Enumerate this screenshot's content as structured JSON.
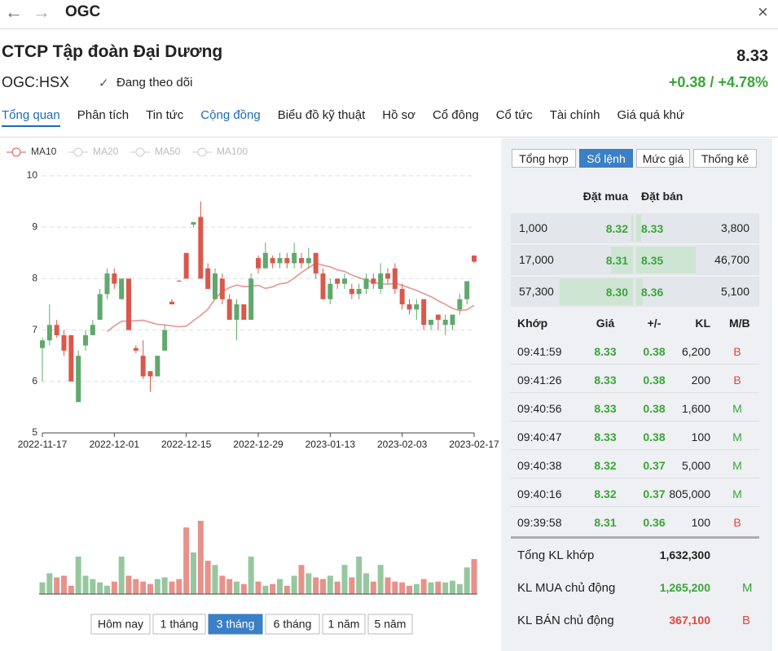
{
  "top_bar": {
    "symbol": "OGC"
  },
  "header": {
    "company": "CTCP Tập đoàn Đại Dương",
    "ticker": "OGC:HSX",
    "follow": "Đang theo dõi",
    "price": "8.33",
    "change": "+0.38 / +4.78%"
  },
  "tabs": [
    "Tổng quan",
    "Phân tích",
    "Tin tức",
    "Cộng đồng",
    "Biểu đồ kỹ thuật",
    "Hồ sơ",
    "Cổ đông",
    "Cổ tức",
    "Tài chính",
    "Giá quá khứ"
  ],
  "chart_data": {
    "type": "candlestick",
    "indicators": [
      "MA10",
      "MA20",
      "MA50",
      "MA100"
    ],
    "categories": [
      "2022-11-17",
      null,
      null,
      null,
      null,
      null,
      null,
      null,
      null,
      null,
      "2022-12-01",
      null,
      null,
      null,
      null,
      null,
      null,
      null,
      null,
      null,
      "2022-12-15",
      null,
      null,
      null,
      null,
      null,
      null,
      null,
      null,
      null,
      "2022-12-29",
      null,
      null,
      null,
      null,
      null,
      null,
      null,
      null,
      null,
      "2023-01-13",
      null,
      null,
      null,
      null,
      null,
      null,
      null,
      null,
      null,
      "2023-02-03",
      null,
      null,
      null,
      null,
      null,
      null,
      null,
      null,
      null,
      "2023-02-17"
    ],
    "open": [
      6.65,
      6.8,
      7.1,
      6.9,
      6.9,
      5.6,
      6.7,
      6.9,
      7.2,
      7.7,
      8.1,
      7.6,
      8.0,
      6.65,
      6.5,
      6.2,
      6.1,
      6.6,
      7.55,
      7.96,
      8.5,
      9.05,
      9.2,
      8.2,
      7.6,
      8.0,
      7.6,
      7.2,
      7.5,
      7.2,
      8.4,
      8.2,
      8.4,
      8.3,
      8.4,
      8.3,
      8.4,
      8.3,
      8.5,
      8.1,
      7.6,
      8.0,
      7.9,
      7.8,
      7.7,
      7.8,
      8.0,
      7.8,
      8.1,
      8.2,
      7.8,
      7.5,
      7.4,
      7.6,
      7.1,
      7.3,
      7.1,
      7.1,
      7.4,
      7.6,
      8.45
    ],
    "close": [
      6.8,
      7.1,
      6.9,
      6.6,
      6.0,
      6.5,
      6.9,
      7.1,
      7.7,
      8.1,
      7.9,
      8.0,
      7.0,
      6.6,
      6.1,
      6.1,
      6.5,
      7.0,
      7.5,
      7.95,
      8.0,
      9.1,
      8.0,
      7.8,
      8.1,
      7.6,
      7.2,
      7.5,
      7.2,
      8.0,
      8.2,
      8.5,
      8.3,
      8.4,
      8.3,
      8.5,
      8.3,
      8.4,
      8.1,
      7.6,
      7.9,
      7.9,
      8.0,
      7.7,
      7.8,
      8.0,
      7.9,
      8.1,
      8.0,
      7.8,
      7.5,
      7.4,
      7.5,
      7.1,
      7.2,
      7.2,
      7.2,
      7.3,
      7.6,
      7.95,
      8.33
    ],
    "high": [
      6.85,
      7.5,
      7.2,
      7.0,
      6.9,
      6.6,
      7.0,
      7.2,
      7.8,
      8.2,
      8.2,
      8.0,
      8.0,
      6.7,
      6.8,
      6.2,
      6.5,
      7.1,
      7.6,
      7.97,
      8.5,
      9.1,
      9.5,
      8.3,
      8.2,
      8.1,
      7.7,
      7.6,
      7.5,
      8.1,
      8.45,
      8.7,
      8.45,
      8.5,
      8.5,
      8.7,
      8.5,
      8.6,
      8.5,
      8.2,
      8.0,
      8.0,
      8.1,
      7.9,
      7.9,
      8.1,
      8.1,
      8.3,
      8.2,
      8.3,
      7.9,
      7.6,
      7.6,
      7.6,
      7.2,
      7.3,
      7.3,
      7.3,
      7.7,
      7.95,
      8.45
    ],
    "low": [
      6.0,
      6.7,
      6.85,
      6.5,
      6.0,
      5.6,
      6.6,
      6.9,
      7.2,
      7.6,
      7.8,
      7.6,
      7.0,
      6.55,
      6.05,
      5.8,
      6.1,
      6.6,
      7.5,
      7.95,
      8.0,
      9.0,
      8.0,
      7.8,
      7.6,
      7.5,
      7.2,
      6.8,
      7.2,
      7.2,
      8.1,
      8.2,
      8.2,
      8.2,
      8.2,
      8.2,
      8.2,
      8.2,
      8.0,
      7.6,
      7.5,
      7.8,
      7.8,
      7.6,
      7.6,
      7.7,
      7.8,
      7.7,
      7.9,
      7.7,
      7.4,
      7.3,
      7.2,
      7.0,
      7.0,
      7.0,
      6.9,
      7.0,
      7.3,
      7.5,
      8.3
    ],
    "volume": [
      14,
      25,
      20,
      22,
      10,
      45,
      22,
      18,
      14,
      10,
      15,
      45,
      22,
      18,
      15,
      12,
      18,
      20,
      15,
      18,
      80,
      50,
      88,
      40,
      35,
      22,
      18,
      15,
      12,
      45,
      15,
      10,
      12,
      18,
      10,
      22,
      35,
      25,
      20,
      18,
      22,
      15,
      35,
      20,
      45,
      25,
      15,
      35,
      20,
      15,
      14,
      10,
      12,
      18,
      14,
      15,
      14,
      16,
      12,
      32,
      42
    ],
    "up_color": "#5fa96c",
    "down_color": "#d9584c",
    "ma_color": "#e3a19b",
    "ylim": [
      5,
      10
    ],
    "yticks": [
      5,
      6,
      7,
      8,
      9,
      10
    ],
    "grid": true
  },
  "ranges": [
    "Hôm nay",
    "1 tháng",
    "3 tháng",
    "6 tháng",
    "1 năm",
    "5 năm"
  ],
  "order_book": {
    "tabs": [
      "Tổng hợp",
      "Sổ lệnh",
      "Mức giá",
      "Thống kê"
    ],
    "bid_header": "Đặt mua",
    "ask_header": "Đặt bán",
    "levels": [
      {
        "bid_qty": {
          "value": 1000,
          "label": "1,000"
        },
        "bid": "8.32",
        "ask": "8.33",
        "ask_qty": {
          "value": 3800,
          "label": "3,800"
        }
      },
      {
        "bid_qty": {
          "value": 17000,
          "label": "17,000"
        },
        "bid": "8.31",
        "ask": "8.35",
        "ask_qty": {
          "value": 46700,
          "label": "46,700"
        }
      },
      {
        "bid_qty": {
          "value": 57300,
          "label": "57,300"
        },
        "bid": "8.30",
        "ask": "8.36",
        "ask_qty": {
          "value": 5100,
          "label": "5,100"
        }
      }
    ],
    "trade_header": [
      "Khớp",
      "Giá",
      "+/-",
      "KL",
      "M/B"
    ],
    "trades": [
      [
        "09:41:59",
        "8.33",
        "0.38",
        "6,200",
        "B"
      ],
      [
        "09:41:26",
        "8.33",
        "0.38",
        "200",
        "B"
      ],
      [
        "09:40:56",
        "8.33",
        "0.38",
        "1,600",
        "M"
      ],
      [
        "09:40:47",
        "8.33",
        "0.38",
        "100",
        "M"
      ],
      [
        "09:40:38",
        "8.32",
        "0.37",
        "5,000",
        "M"
      ],
      [
        "09:40:16",
        "8.32",
        "0.37",
        "805,000",
        "M"
      ],
      [
        "09:39:58",
        "8.31",
        "0.36",
        "100",
        "B"
      ]
    ],
    "summary": [
      {
        "label": "Tổng KL khớp",
        "value": "1,632,300"
      },
      {
        "label": "KL MUA chủ động",
        "value": "1,265,200",
        "side": "M"
      },
      {
        "label": "KL BÁN chủ động",
        "value": "367,100",
        "side": "B"
      }
    ]
  }
}
